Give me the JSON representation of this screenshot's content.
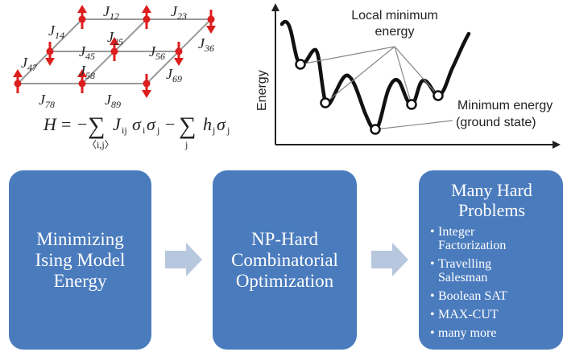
{
  "ising": {
    "couplings": [
      "J12",
      "J23",
      "J14",
      "J25",
      "J36",
      "J45",
      "J56",
      "J47",
      "J58",
      "J69",
      "J78",
      "J89"
    ],
    "hamiltonian": {
      "lhs": "H = −",
      "sum1_index": "〈i,j〉",
      "term1": "Jᵢⱼσᵢσⱼ",
      "minus": "−",
      "sum2_index": "j",
      "term2": "hⱼσⱼ",
      "sigma": "∑"
    },
    "spin_color": "#dd1e1e",
    "lattice_color": "#999999"
  },
  "landscape": {
    "ylabel": "Energy",
    "local_min_label": [
      "Local minimum",
      "energy"
    ],
    "min_label": [
      "Minimum energy",
      "(ground state)"
    ]
  },
  "flow": {
    "box_color": "#4a7bbd",
    "arrow_color": "#b7c7de",
    "box1": [
      "Minimizing",
      "Ising Model",
      "Energy"
    ],
    "box2": [
      "NP-Hard",
      "Combinatorial",
      "Optimization"
    ],
    "box3": {
      "title": [
        "Many Hard",
        "Problems"
      ],
      "items": [
        [
          "Integer",
          "Factorization"
        ],
        [
          "Travelling",
          "Salesman"
        ],
        [
          "Boolean SAT"
        ],
        [
          "MAX-CUT"
        ],
        [
          "many more"
        ]
      ]
    }
  }
}
